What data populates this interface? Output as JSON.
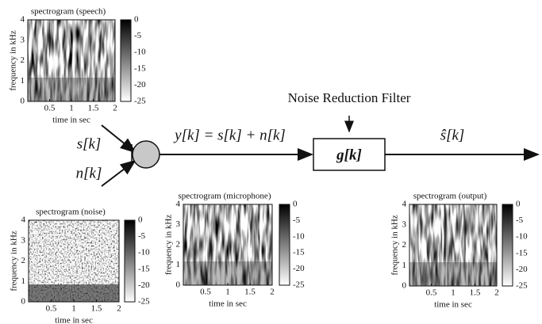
{
  "filter_label": "Noise Reduction Filter",
  "signals": {
    "speech": "s[k]",
    "noise": "n[k]",
    "mixture": "y[k] = s[k] + n[k]",
    "filter": "g[k]",
    "estimate": "ŝ[k]"
  },
  "spectrograms": [
    {
      "title": "spectrogram (speech)",
      "ylabel": "frequency in kHz",
      "xlabel": "time in sec",
      "yticks": [
        0,
        1,
        2,
        3,
        4
      ],
      "xticks": [
        0.5,
        1,
        1.5,
        2
      ],
      "colorbar_ticks": [
        0,
        -5,
        -10,
        -15,
        -20,
        -25
      ]
    },
    {
      "title": "spectrogram (noise)",
      "ylabel": "frequency in kHz",
      "xlabel": "time in sec",
      "yticks": [
        0,
        1,
        2,
        3,
        4
      ],
      "xticks": [
        0.5,
        1,
        1.5,
        2
      ],
      "colorbar_ticks": [
        0,
        -5,
        -10,
        -15,
        -20,
        -25
      ]
    },
    {
      "title": "spectrogram (microphone)",
      "ylabel": "frequency in kHz",
      "xlabel": "time in sec",
      "yticks": [
        0,
        1,
        2,
        3,
        4
      ],
      "xticks": [
        0.5,
        1,
        1.5,
        2
      ],
      "colorbar_ticks": [
        0,
        -5,
        -10,
        -15,
        -20,
        -25
      ]
    },
    {
      "title": "spectrogram (output)",
      "ylabel": "frequency in kHz",
      "xlabel": "time in sec",
      "yticks": [
        0,
        1,
        2,
        3,
        4
      ],
      "xticks": [
        0.5,
        1,
        1.5,
        2
      ],
      "colorbar_ticks": [
        0,
        -5,
        -10,
        -15,
        -20,
        -25
      ]
    }
  ]
}
